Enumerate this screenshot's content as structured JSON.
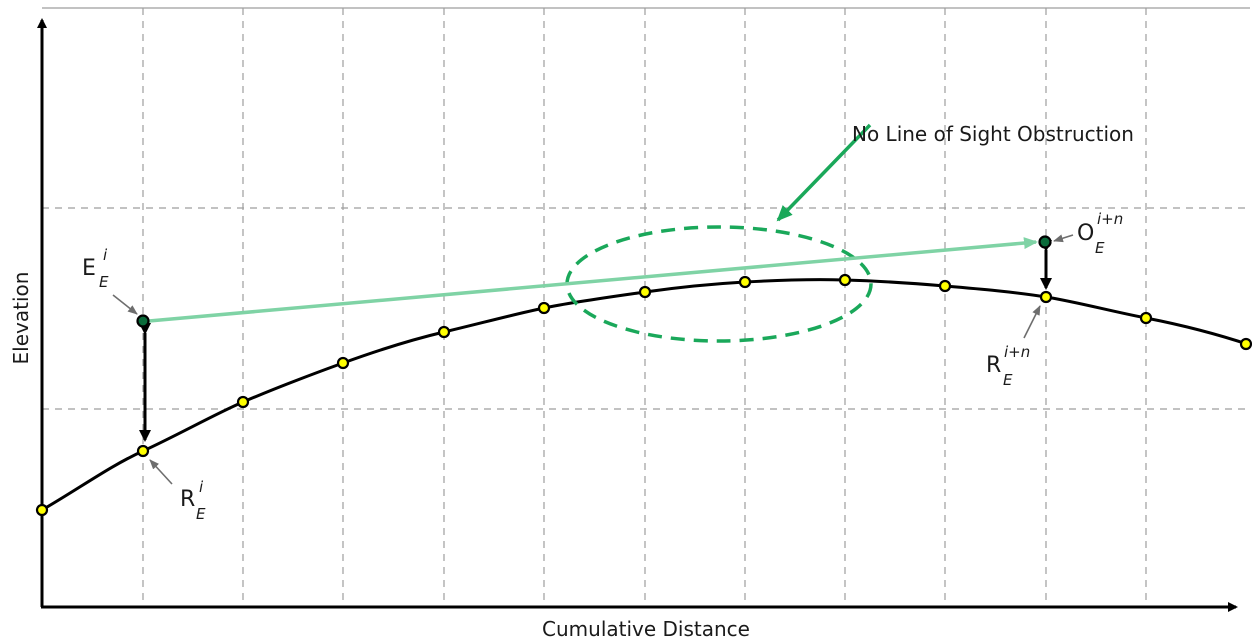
{
  "axes": {
    "x_title": "Cumulative Distance",
    "y_title": "Elevation"
  },
  "annotation": {
    "text": "No Line of Sight Obstruction"
  },
  "labels": {
    "eye": {
      "base": "E",
      "sup": "i",
      "sub": "E"
    },
    "ground_start": {
      "base": "R",
      "sup": "i",
      "sub": "E"
    },
    "observer": {
      "base": "O",
      "sup": "i+n",
      "sub": "E"
    },
    "ground_end": {
      "base": "R",
      "sup": "i+n",
      "sub": "E"
    }
  },
  "colors": {
    "terrain": "#000000",
    "sample_point": "#ffff00",
    "sight_line": "#7fd3a5",
    "eye_point": "#0a6b3a",
    "obstruction_check": "#1aa85a",
    "callout_arrow": "#1aa85a",
    "grid": "#9e9e9e",
    "pointer": "#6e6e6e"
  }
}
